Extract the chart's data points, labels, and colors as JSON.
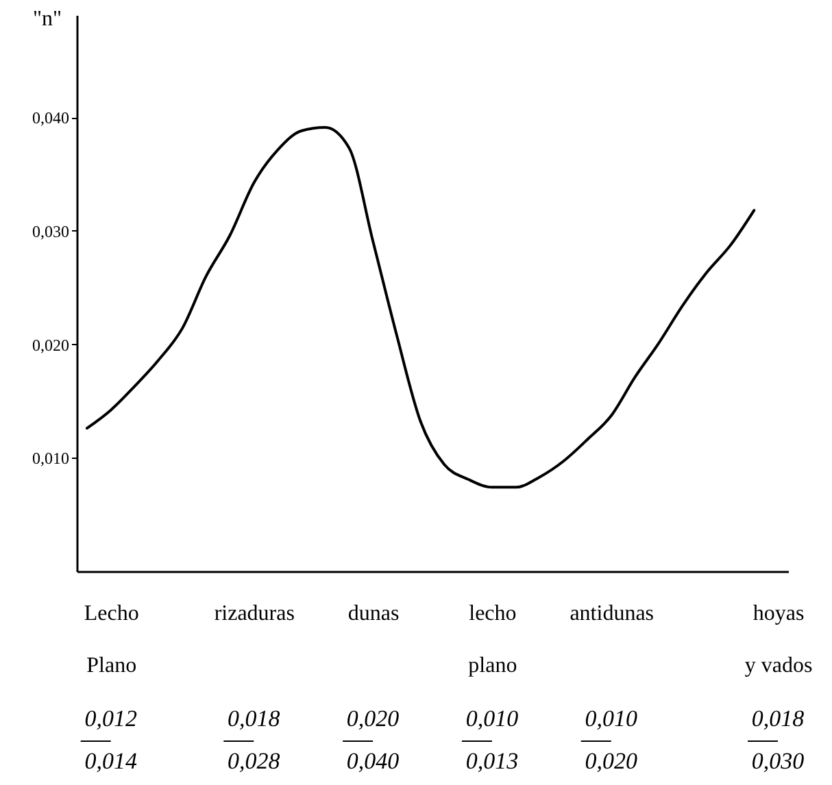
{
  "chart_data": {
    "type": "line",
    "ylabel": "\"n\"",
    "categories": [
      null,
      "Lecho\nPlano",
      null,
      null,
      null,
      null,
      null,
      "rizaduras",
      null,
      null,
      null,
      null,
      "dunas",
      null,
      null,
      null,
      null,
      "lecho\nplano",
      null,
      null,
      null,
      null,
      "antidunas",
      null,
      null,
      null,
      null,
      null,
      null,
      "hoyas\ny vados"
    ],
    "ylim": [
      0,
      0.049
    ],
    "yticks": [
      {
        "value": 0.01,
        "label": "0,010"
      },
      {
        "value": 0.02,
        "label": "0,020"
      },
      {
        "value": 0.03,
        "label": "0,030"
      },
      {
        "value": 0.04,
        "label": "0,040"
      }
    ],
    "series": [
      {
        "color": "#000000",
        "values": [
          0.0126,
          0.0142,
          0.0163,
          0.0186,
          0.0214,
          0.026,
          0.0296,
          0.0342,
          0.0371,
          0.0388,
          0.0391,
          0.0373,
          0.0291,
          0.0208,
          0.0132,
          0.0094,
          0.0081,
          0.0074,
          0.0074,
          0.0083,
          0.0097,
          0.0116,
          0.0137,
          0.0171,
          0.0201,
          0.0234,
          0.0263,
          0.0287,
          0.0318,
          null
        ]
      }
    ],
    "annotations": [
      "0,012",
      "0,014",
      "0,018",
      "0,028",
      "0,020",
      "0,040",
      "0,010",
      "0,013",
      "0,010",
      "0,020",
      "0,018",
      "0,030"
    ],
    "grid": false,
    "marker": "none",
    "line_style": "solid"
  }
}
